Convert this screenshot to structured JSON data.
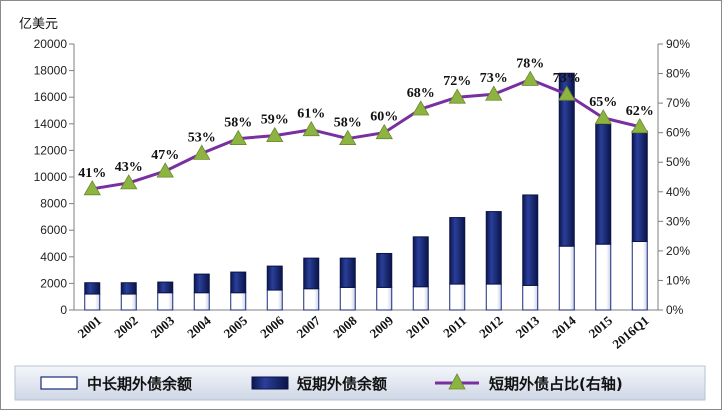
{
  "chart_data": {
    "type": "bar",
    "stacked": true,
    "unit_label": "亿美元",
    "categories": [
      "2001",
      "2002",
      "2003",
      "2004",
      "2005",
      "2006",
      "2007",
      "2008",
      "2009",
      "2010",
      "2011",
      "2012",
      "2013",
      "2014",
      "2015",
      "2016Q1"
    ],
    "series": [
      {
        "name": "中长期外债余额",
        "type": "bar",
        "axis": "left",
        "color": "#ffffff",
        "values": [
          1200,
          1200,
          1300,
          1300,
          1300,
          1500,
          1600,
          1700,
          1700,
          1750,
          1950,
          1950,
          1850,
          4800,
          4950,
          5150
        ]
      },
      {
        "name": "短期外债余额",
        "type": "bar",
        "axis": "left",
        "color": "#1a2a7a",
        "values": [
          850,
          850,
          800,
          1400,
          1550,
          1800,
          2300,
          2200,
          2550,
          3750,
          5000,
          5450,
          6800,
          13000,
          9000,
          8300
        ]
      },
      {
        "name": "短期外债占比(右轴)",
        "type": "line",
        "axis": "right",
        "color": "#7a2fa0",
        "marker_color": "#8db341",
        "values": [
          41,
          43,
          47,
          53,
          58,
          59,
          61,
          58,
          60,
          68,
          72,
          73,
          78,
          73,
          65,
          62
        ],
        "labels": [
          "41%",
          "43%",
          "47%",
          "53%",
          "58%",
          "59%",
          "61%",
          "58%",
          "60%",
          "68%",
          "72%",
          "73%",
          "78%",
          "73%",
          "65%",
          "62%"
        ]
      }
    ],
    "ylim_left": [
      0,
      20000
    ],
    "yticks_left": [
      "0",
      "2000",
      "4000",
      "6000",
      "8000",
      "10000",
      "12000",
      "14000",
      "16000",
      "18000",
      "20000"
    ],
    "ylim_right": [
      0,
      90
    ],
    "yticks_right": [
      "0%",
      "10%",
      "20%",
      "30%",
      "40%",
      "50%",
      "60%",
      "70%",
      "80%",
      "90%"
    ],
    "grid": false,
    "legend_position": "bottom"
  }
}
